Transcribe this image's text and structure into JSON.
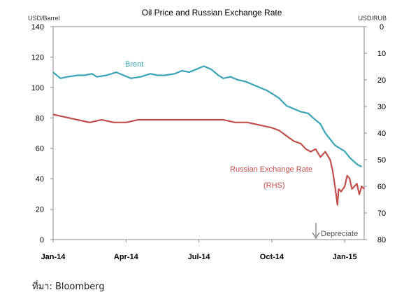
{
  "chart_data": {
    "type": "line",
    "title": "Oil Price and Russian Exchange Rate",
    "left_axis": {
      "unit_label": "USD/Barrel",
      "ylim": [
        0,
        140
      ],
      "ticks": [
        0,
        20,
        40,
        60,
        80,
        100,
        120,
        140
      ]
    },
    "right_axis": {
      "unit_label": "USD/RUB",
      "ylim": [
        80,
        0
      ],
      "inverted": true,
      "ticks": [
        0,
        10,
        20,
        30,
        40,
        50,
        60,
        70,
        80
      ]
    },
    "x_axis": {
      "ticks": [
        "Jan-14",
        "Apr-14",
        "Jul-14",
        "Oct-14",
        "Jan-15"
      ],
      "tick_positions": [
        0,
        3,
        6,
        9,
        12
      ]
    },
    "series": [
      {
        "name": "Brent",
        "axis": "left",
        "color": "#3aa3b5",
        "points": [
          [
            0,
            110
          ],
          [
            0.3,
            106
          ],
          [
            0.6,
            107
          ],
          [
            1.0,
            108
          ],
          [
            1.3,
            108
          ],
          [
            1.6,
            109
          ],
          [
            1.8,
            107
          ],
          [
            2.2,
            108
          ],
          [
            2.6,
            110
          ],
          [
            2.9,
            108
          ],
          [
            3.2,
            106
          ],
          [
            3.6,
            107
          ],
          [
            4.0,
            109
          ],
          [
            4.3,
            108
          ],
          [
            4.6,
            108
          ],
          [
            5.0,
            109
          ],
          [
            5.3,
            111
          ],
          [
            5.6,
            110
          ],
          [
            5.9,
            112
          ],
          [
            6.2,
            114
          ],
          [
            6.5,
            112
          ],
          [
            6.8,
            108
          ],
          [
            7.0,
            106
          ],
          [
            7.3,
            107
          ],
          [
            7.6,
            105
          ],
          [
            7.9,
            104
          ],
          [
            8.2,
            102
          ],
          [
            8.5,
            100
          ],
          [
            8.8,
            98
          ],
          [
            9.0,
            96
          ],
          [
            9.3,
            93
          ],
          [
            9.6,
            88
          ],
          [
            9.9,
            86
          ],
          [
            10.2,
            84
          ],
          [
            10.5,
            83
          ],
          [
            10.7,
            80
          ],
          [
            11.0,
            76
          ],
          [
            11.2,
            70
          ],
          [
            11.4,
            66
          ],
          [
            11.6,
            62
          ],
          [
            11.8,
            60
          ],
          [
            12.0,
            58
          ],
          [
            12.2,
            54
          ],
          [
            12.4,
            51
          ],
          [
            12.55,
            49
          ],
          [
            12.7,
            48
          ]
        ]
      },
      {
        "name": "Russian Exchange Rate (RHS)",
        "axis": "right",
        "color": "#c0504d",
        "points": [
          [
            0,
            33
          ],
          [
            0.5,
            34
          ],
          [
            1.0,
            35
          ],
          [
            1.5,
            36
          ],
          [
            2.0,
            35
          ],
          [
            2.5,
            36
          ],
          [
            3.0,
            36
          ],
          [
            3.5,
            35
          ],
          [
            4.0,
            35
          ],
          [
            4.5,
            35
          ],
          [
            5.0,
            35
          ],
          [
            5.5,
            35
          ],
          [
            6.0,
            35
          ],
          [
            6.5,
            35
          ],
          [
            7.0,
            35
          ],
          [
            7.5,
            36
          ],
          [
            8.0,
            36
          ],
          [
            8.5,
            37
          ],
          [
            9.0,
            38
          ],
          [
            9.3,
            39
          ],
          [
            9.6,
            41
          ],
          [
            9.9,
            43
          ],
          [
            10.2,
            44
          ],
          [
            10.4,
            46
          ],
          [
            10.6,
            47
          ],
          [
            10.8,
            46
          ],
          [
            11.0,
            49
          ],
          [
            11.2,
            47
          ],
          [
            11.4,
            50
          ],
          [
            11.5,
            54
          ],
          [
            11.6,
            60
          ],
          [
            11.7,
            67
          ],
          [
            11.75,
            61
          ],
          [
            11.85,
            62
          ],
          [
            12.0,
            60
          ],
          [
            12.1,
            56
          ],
          [
            12.2,
            57
          ],
          [
            12.3,
            61
          ],
          [
            12.4,
            60
          ],
          [
            12.5,
            59
          ],
          [
            12.6,
            63
          ],
          [
            12.7,
            60
          ],
          [
            12.8,
            61
          ]
        ]
      }
    ],
    "annotations": [
      {
        "text": "Brent",
        "color": "#3aa3b5"
      },
      {
        "text": "Russian Exchange Rate",
        "color": "#c0504d"
      },
      {
        "text": "(RHS)",
        "color": "#c0504d"
      },
      {
        "text": "Depreciate",
        "color": "#555555"
      }
    ],
    "grid": false,
    "legend": "none"
  },
  "footer": {
    "source_text": "ที่มา: Bloomberg"
  }
}
